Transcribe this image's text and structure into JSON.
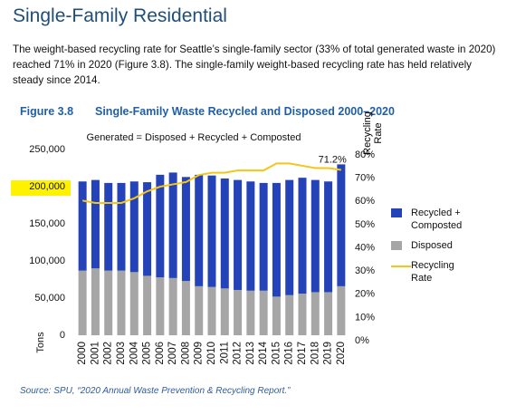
{
  "header": {
    "title": "Single-Family Residential"
  },
  "body": {
    "paragraph": "The weight-based recycling rate for Seattle’s single-family sector (33% of total generated waste in 2020) reached 71% in 2020 (Figure 3.8). The single-family weight-based recycling rate has held relatively steady since 2014."
  },
  "figure": {
    "label": "Figure 3.8",
    "title": "Single-Family Waste Recycled and Disposed 2000–2020"
  },
  "chart_data": {
    "type": "bar",
    "stacked": true,
    "annotation": "Generated = Disposed + Recycled + Composted",
    "y_label": "Tons",
    "y2_label": "Recycling Rate",
    "categories": [
      "2000",
      "2001",
      "2002",
      "2003",
      "2004",
      "2005",
      "2006",
      "2007",
      "2008",
      "2009",
      "2010",
      "2011",
      "2012",
      "2013",
      "2014",
      "2015",
      "2016",
      "2017",
      "2018",
      "2019",
      "2020"
    ],
    "series": [
      {
        "name": "Disposed",
        "color": "#a6a6a6",
        "values": [
          87000,
          90000,
          87000,
          87000,
          85000,
          80000,
          78000,
          77000,
          73000,
          66000,
          65000,
          63000,
          61000,
          60000,
          60000,
          52000,
          54000,
          56000,
          58000,
          58000,
          66000
        ]
      },
      {
        "name": "Recycled + Composted",
        "color": "#2543b8",
        "values": [
          120000,
          119000,
          118000,
          118000,
          122000,
          126000,
          138000,
          142000,
          140000,
          150000,
          150000,
          148000,
          148000,
          147000,
          145000,
          153000,
          155000,
          156000,
          151000,
          149000,
          164000
        ]
      },
      {
        "name": "Recycling Rate",
        "type": "line",
        "axis": "y2",
        "color": "#f5c518",
        "values": [
          58,
          57,
          57,
          57,
          59,
          62,
          64,
          65,
          66,
          69,
          70,
          70,
          71,
          71,
          71,
          74,
          74,
          73,
          72,
          72,
          71.2
        ],
        "value_labels": [
          null,
          null,
          null,
          null,
          null,
          null,
          null,
          null,
          null,
          null,
          null,
          null,
          null,
          null,
          null,
          null,
          null,
          null,
          null,
          null,
          "71.2%"
        ]
      }
    ],
    "ylim": [
      0,
      250000
    ],
    "yticks": [
      0,
      {
        "value": 50000,
        "label": "50,000"
      },
      {
        "value": 100000,
        "label": "100,000"
      },
      {
        "value": 150000,
        "label": "150,000"
      },
      {
        "value": 200000,
        "label": "200,000"
      },
      {
        "value": 250000,
        "label": "250,000"
      }
    ],
    "y2lim": [
      0,
      80
    ],
    "y2ticks": [
      {
        "value": 0,
        "label": "0%"
      },
      {
        "value": 10,
        "label": "10%"
      },
      {
        "value": 20,
        "label": "20%"
      },
      {
        "value": 30,
        "label": "30%"
      },
      {
        "value": 40,
        "label": "40%"
      },
      {
        "value": 50,
        "label": "50%"
      },
      {
        "value": 60,
        "label": "60%"
      },
      {
        "value": 70,
        "label": "70%"
      },
      {
        "value": 80,
        "label": "80%"
      }
    ],
    "grid": false
  },
  "source": "Source: SPU, “2020 Annual Waste Prevention & Recycling Report.”"
}
